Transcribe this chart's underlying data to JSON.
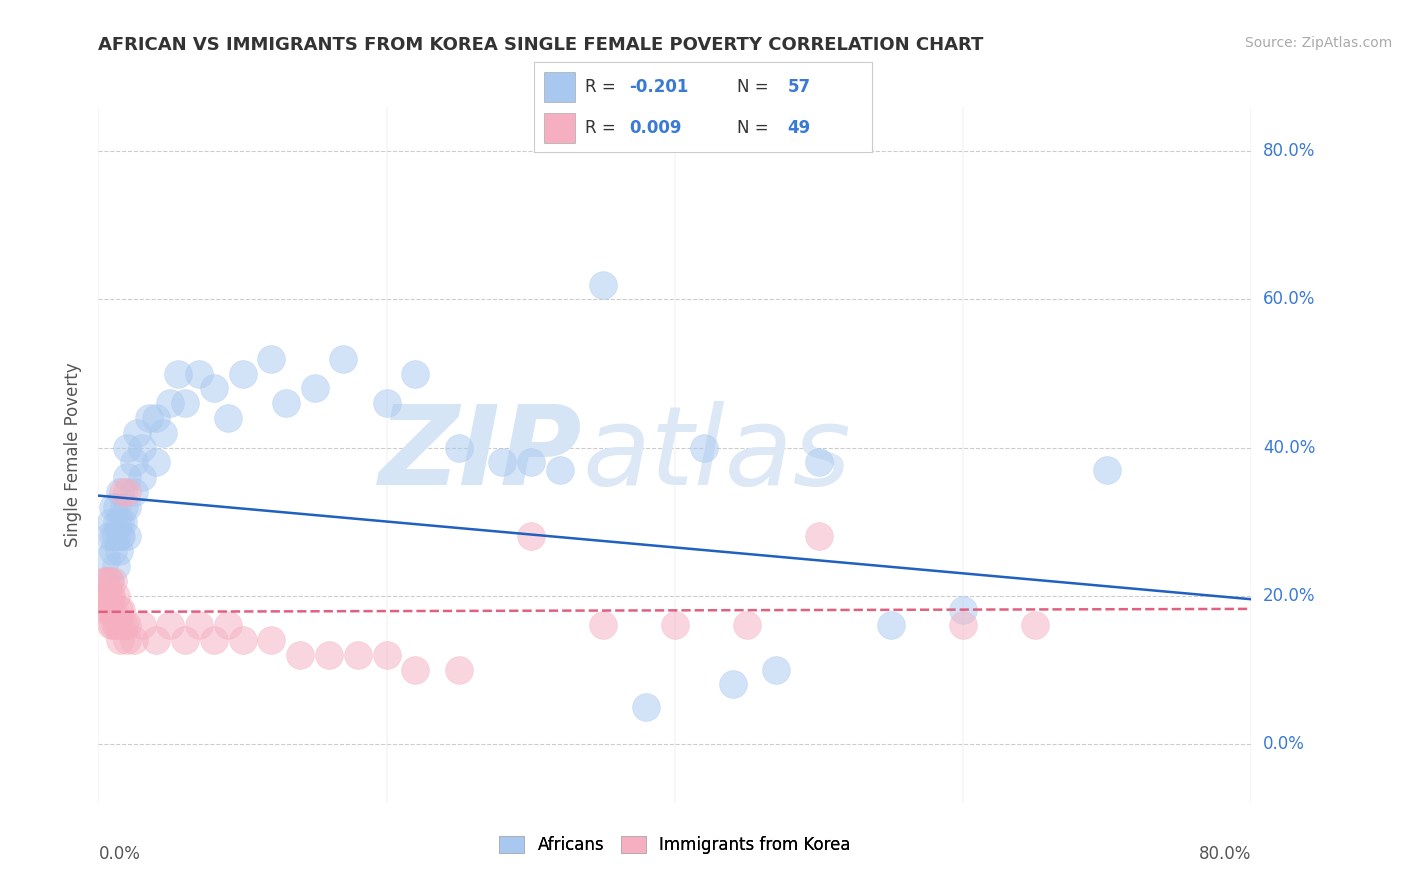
{
  "title": "AFRICAN VS IMMIGRANTS FROM KOREA SINGLE FEMALE POVERTY CORRELATION CHART",
  "source": "Source: ZipAtlas.com",
  "ylabel": "Single Female Poverty",
  "xlim": [
    0,
    0.8
  ],
  "ylim": [
    -0.08,
    0.86
  ],
  "yticks": [
    0.0,
    0.2,
    0.4,
    0.6,
    0.8
  ],
  "ytick_labels": [
    "0.0%",
    "20.0%",
    "40.0%",
    "60.0%",
    "80.0%"
  ],
  "legend_label1": "Africans",
  "legend_label2": "Immigrants from Korea",
  "color_blue": "#a8c8f0",
  "color_pink": "#f5afc0",
  "color_blue_line": "#2060c0",
  "color_pink_line": "#e06080",
  "watermark_zip": "ZIP",
  "watermark_atlas": "atlas",
  "watermark_color": "#d5e5f5",
  "background_color": "#ffffff",
  "grid_color": "#cccccc",
  "blue_line_x": [
    0.0,
    0.8
  ],
  "blue_line_y": [
    0.335,
    0.195
  ],
  "pink_line_x": [
    0.0,
    0.8
  ],
  "pink_line_y": [
    0.178,
    0.182
  ],
  "africans_x": [
    0.005,
    0.007,
    0.008,
    0.009,
    0.01,
    0.01,
    0.01,
    0.012,
    0.012,
    0.013,
    0.013,
    0.014,
    0.015,
    0.015,
    0.015,
    0.016,
    0.017,
    0.018,
    0.02,
    0.02,
    0.02,
    0.02,
    0.025,
    0.025,
    0.027,
    0.03,
    0.03,
    0.035,
    0.04,
    0.04,
    0.045,
    0.05,
    0.055,
    0.06,
    0.07,
    0.08,
    0.09,
    0.1,
    0.12,
    0.13,
    0.15,
    0.17,
    0.2,
    0.22,
    0.25,
    0.28,
    0.3,
    0.32,
    0.35,
    0.38,
    0.42,
    0.44,
    0.47,
    0.5,
    0.55,
    0.6,
    0.7
  ],
  "africans_y": [
    0.25,
    0.28,
    0.22,
    0.3,
    0.26,
    0.28,
    0.32,
    0.24,
    0.28,
    0.3,
    0.32,
    0.26,
    0.28,
    0.3,
    0.34,
    0.28,
    0.3,
    0.32,
    0.28,
    0.32,
    0.36,
    0.4,
    0.34,
    0.38,
    0.42,
    0.36,
    0.4,
    0.44,
    0.38,
    0.44,
    0.42,
    0.46,
    0.5,
    0.46,
    0.5,
    0.48,
    0.44,
    0.5,
    0.52,
    0.46,
    0.48,
    0.52,
    0.46,
    0.5,
    0.4,
    0.38,
    0.38,
    0.37,
    0.62,
    0.05,
    0.4,
    0.08,
    0.1,
    0.38,
    0.16,
    0.18,
    0.37
  ],
  "korea_x": [
    0.003,
    0.004,
    0.005,
    0.005,
    0.006,
    0.007,
    0.007,
    0.008,
    0.008,
    0.009,
    0.009,
    0.01,
    0.01,
    0.01,
    0.012,
    0.012,
    0.013,
    0.014,
    0.015,
    0.015,
    0.016,
    0.017,
    0.018,
    0.02,
    0.02,
    0.02,
    0.025,
    0.03,
    0.04,
    0.05,
    0.06,
    0.07,
    0.08,
    0.09,
    0.1,
    0.12,
    0.14,
    0.16,
    0.18,
    0.2,
    0.22,
    0.25,
    0.3,
    0.35,
    0.4,
    0.45,
    0.5,
    0.6,
    0.65
  ],
  "korea_y": [
    0.2,
    0.22,
    0.18,
    0.22,
    0.2,
    0.18,
    0.22,
    0.18,
    0.2,
    0.16,
    0.2,
    0.16,
    0.18,
    0.22,
    0.16,
    0.2,
    0.16,
    0.18,
    0.14,
    0.16,
    0.18,
    0.34,
    0.16,
    0.14,
    0.16,
    0.34,
    0.14,
    0.16,
    0.14,
    0.16,
    0.14,
    0.16,
    0.14,
    0.16,
    0.14,
    0.14,
    0.12,
    0.12,
    0.12,
    0.12,
    0.1,
    0.1,
    0.28,
    0.16,
    0.16,
    0.16,
    0.28,
    0.16,
    0.16
  ]
}
